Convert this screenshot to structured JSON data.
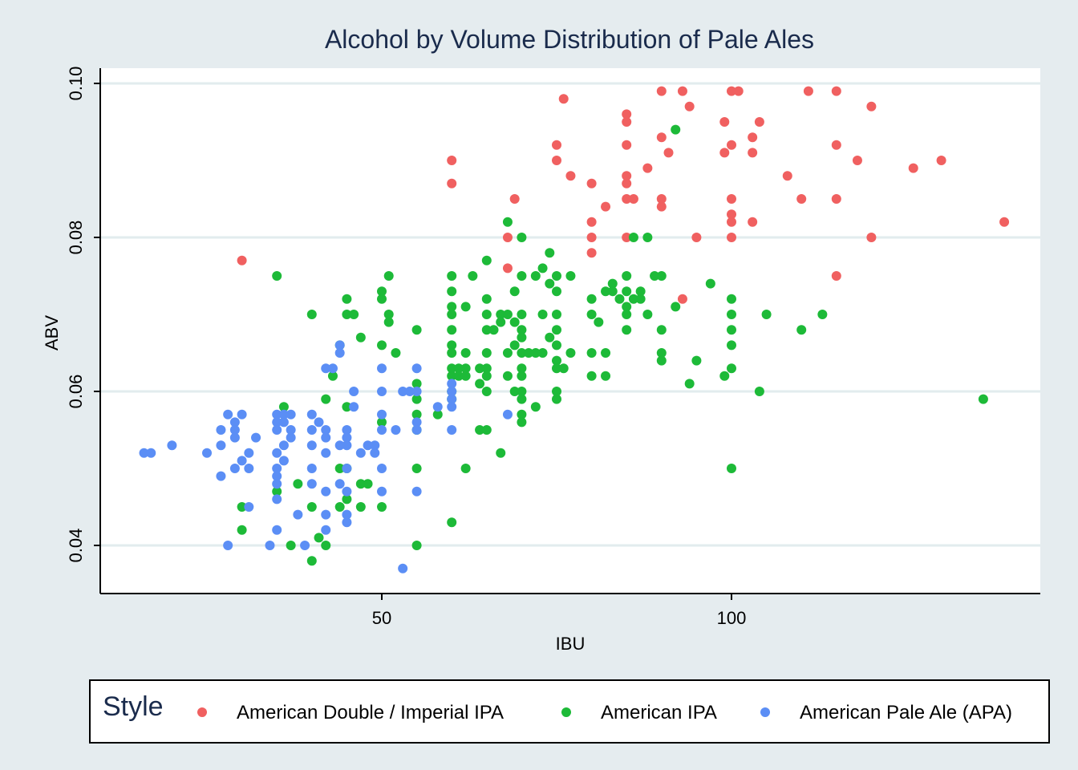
{
  "chart_data": {
    "type": "scatter",
    "title": "Alcohol by Volume Distribution of Pale Ales",
    "xlabel": "IBU",
    "ylabel": "ABV",
    "xlim": [
      10,
      145
    ],
    "ylim": [
      0.035,
      0.1005
    ],
    "xticks": [
      50,
      100
    ],
    "xtick_labels": [
      "50",
      "100"
    ],
    "yticks": [
      0.04,
      0.06,
      0.08,
      0.1
    ],
    "ytick_labels": [
      "0.04",
      "0.06",
      "0.08",
      "0.10"
    ],
    "grid": true,
    "legend": {
      "title": "Style",
      "position": "bottom"
    },
    "series": [
      {
        "name": "American Double / Imperial IPA",
        "color": "#f06060",
        "points": [
          [
            30,
            0.077
          ],
          [
            60,
            0.09
          ],
          [
            60,
            0.087
          ],
          [
            68,
            0.08
          ],
          [
            68,
            0.076
          ],
          [
            69,
            0.085
          ],
          [
            75,
            0.092
          ],
          [
            75,
            0.09
          ],
          [
            76,
            0.098
          ],
          [
            77,
            0.088
          ],
          [
            80,
            0.087
          ],
          [
            80,
            0.082
          ],
          [
            80,
            0.08
          ],
          [
            80,
            0.078
          ],
          [
            82,
            0.084
          ],
          [
            85,
            0.096
          ],
          [
            85,
            0.095
          ],
          [
            85,
            0.092
          ],
          [
            85,
            0.088
          ],
          [
            85,
            0.087
          ],
          [
            85,
            0.085
          ],
          [
            85,
            0.08
          ],
          [
            86,
            0.085
          ],
          [
            88,
            0.089
          ],
          [
            90,
            0.099
          ],
          [
            90,
            0.093
          ],
          [
            90,
            0.085
          ],
          [
            90,
            0.084
          ],
          [
            91,
            0.091
          ],
          [
            93,
            0.099
          ],
          [
            93,
            0.072
          ],
          [
            94,
            0.097
          ],
          [
            95,
            0.08
          ],
          [
            99,
            0.095
          ],
          [
            99,
            0.091
          ],
          [
            100,
            0.099
          ],
          [
            100,
            0.092
          ],
          [
            100,
            0.085
          ],
          [
            100,
            0.083
          ],
          [
            100,
            0.082
          ],
          [
            100,
            0.08
          ],
          [
            101,
            0.099
          ],
          [
            103,
            0.093
          ],
          [
            103,
            0.091
          ],
          [
            103,
            0.082
          ],
          [
            104,
            0.095
          ],
          [
            108,
            0.088
          ],
          [
            110,
            0.085
          ],
          [
            111,
            0.099
          ],
          [
            115,
            0.099
          ],
          [
            115,
            0.092
          ],
          [
            115,
            0.085
          ],
          [
            115,
            0.075
          ],
          [
            118,
            0.09
          ],
          [
            120,
            0.097
          ],
          [
            120,
            0.08
          ],
          [
            126,
            0.089
          ],
          [
            130,
            0.09
          ],
          [
            139,
            0.082
          ]
        ]
      },
      {
        "name": "American IPA",
        "color": "#1dba38",
        "points": [
          [
            30,
            0.045
          ],
          [
            30,
            0.042
          ],
          [
            35,
            0.075
          ],
          [
            35,
            0.047
          ],
          [
            36,
            0.058
          ],
          [
            37,
            0.04
          ],
          [
            38,
            0.048
          ],
          [
            40,
            0.07
          ],
          [
            40,
            0.045
          ],
          [
            40,
            0.038
          ],
          [
            41,
            0.041
          ],
          [
            42,
            0.059
          ],
          [
            42,
            0.04
          ],
          [
            43,
            0.062
          ],
          [
            44,
            0.066
          ],
          [
            44,
            0.05
          ],
          [
            44,
            0.045
          ],
          [
            45,
            0.072
          ],
          [
            45,
            0.07
          ],
          [
            45,
            0.058
          ],
          [
            45,
            0.05
          ],
          [
            45,
            0.046
          ],
          [
            46,
            0.07
          ],
          [
            47,
            0.067
          ],
          [
            47,
            0.048
          ],
          [
            47,
            0.045
          ],
          [
            48,
            0.048
          ],
          [
            50,
            0.073
          ],
          [
            50,
            0.072
          ],
          [
            50,
            0.066
          ],
          [
            50,
            0.056
          ],
          [
            50,
            0.045
          ],
          [
            51,
            0.075
          ],
          [
            51,
            0.07
          ],
          [
            51,
            0.069
          ],
          [
            52,
            0.065
          ],
          [
            55,
            0.068
          ],
          [
            55,
            0.061
          ],
          [
            55,
            0.059
          ],
          [
            55,
            0.057
          ],
          [
            55,
            0.055
          ],
          [
            55,
            0.05
          ],
          [
            55,
            0.04
          ],
          [
            58,
            0.057
          ],
          [
            60,
            0.075
          ],
          [
            60,
            0.073
          ],
          [
            60,
            0.071
          ],
          [
            60,
            0.07
          ],
          [
            60,
            0.068
          ],
          [
            60,
            0.066
          ],
          [
            60,
            0.065
          ],
          [
            60,
            0.063
          ],
          [
            60,
            0.062
          ],
          [
            60,
            0.06
          ],
          [
            60,
            0.059
          ],
          [
            60,
            0.043
          ],
          [
            61,
            0.063
          ],
          [
            61,
            0.062
          ],
          [
            62,
            0.071
          ],
          [
            62,
            0.065
          ],
          [
            62,
            0.063
          ],
          [
            62,
            0.062
          ],
          [
            62,
            0.05
          ],
          [
            63,
            0.075
          ],
          [
            64,
            0.063
          ],
          [
            64,
            0.061
          ],
          [
            64,
            0.055
          ],
          [
            65,
            0.077
          ],
          [
            65,
            0.072
          ],
          [
            65,
            0.07
          ],
          [
            65,
            0.068
          ],
          [
            65,
            0.065
          ],
          [
            65,
            0.063
          ],
          [
            65,
            0.062
          ],
          [
            65,
            0.06
          ],
          [
            65,
            0.055
          ],
          [
            66,
            0.068
          ],
          [
            67,
            0.07
          ],
          [
            67,
            0.069
          ],
          [
            67,
            0.052
          ],
          [
            68,
            0.082
          ],
          [
            68,
            0.07
          ],
          [
            68,
            0.065
          ],
          [
            68,
            0.062
          ],
          [
            69,
            0.073
          ],
          [
            69,
            0.069
          ],
          [
            69,
            0.066
          ],
          [
            69,
            0.06
          ],
          [
            70,
            0.08
          ],
          [
            70,
            0.075
          ],
          [
            70,
            0.07
          ],
          [
            70,
            0.068
          ],
          [
            70,
            0.067
          ],
          [
            70,
            0.065
          ],
          [
            70,
            0.063
          ],
          [
            70,
            0.062
          ],
          [
            70,
            0.06
          ],
          [
            70,
            0.059
          ],
          [
            70,
            0.057
          ],
          [
            70,
            0.056
          ],
          [
            71,
            0.065
          ],
          [
            72,
            0.075
          ],
          [
            72,
            0.065
          ],
          [
            72,
            0.058
          ],
          [
            73,
            0.076
          ],
          [
            73,
            0.07
          ],
          [
            73,
            0.065
          ],
          [
            74,
            0.078
          ],
          [
            74,
            0.074
          ],
          [
            74,
            0.067
          ],
          [
            75,
            0.075
          ],
          [
            75,
            0.073
          ],
          [
            75,
            0.07
          ],
          [
            75,
            0.068
          ],
          [
            75,
            0.066
          ],
          [
            75,
            0.064
          ],
          [
            75,
            0.063
          ],
          [
            75,
            0.06
          ],
          [
            75,
            0.059
          ],
          [
            76,
            0.063
          ],
          [
            77,
            0.075
          ],
          [
            77,
            0.065
          ],
          [
            80,
            0.072
          ],
          [
            80,
            0.07
          ],
          [
            80,
            0.065
          ],
          [
            80,
            0.062
          ],
          [
            81,
            0.069
          ],
          [
            82,
            0.073
          ],
          [
            82,
            0.065
          ],
          [
            82,
            0.062
          ],
          [
            83,
            0.074
          ],
          [
            83,
            0.073
          ],
          [
            84,
            0.072
          ],
          [
            85,
            0.075
          ],
          [
            85,
            0.073
          ],
          [
            85,
            0.071
          ],
          [
            85,
            0.07
          ],
          [
            85,
            0.068
          ],
          [
            86,
            0.08
          ],
          [
            86,
            0.072
          ],
          [
            87,
            0.073
          ],
          [
            87,
            0.072
          ],
          [
            88,
            0.08
          ],
          [
            88,
            0.07
          ],
          [
            89,
            0.075
          ],
          [
            90,
            0.075
          ],
          [
            90,
            0.068
          ],
          [
            90,
            0.065
          ],
          [
            90,
            0.064
          ],
          [
            92,
            0.094
          ],
          [
            92,
            0.071
          ],
          [
            94,
            0.061
          ],
          [
            95,
            0.064
          ],
          [
            97,
            0.074
          ],
          [
            99,
            0.062
          ],
          [
            100,
            0.072
          ],
          [
            100,
            0.07
          ],
          [
            100,
            0.068
          ],
          [
            100,
            0.066
          ],
          [
            100,
            0.063
          ],
          [
            100,
            0.05
          ],
          [
            104,
            0.06
          ],
          [
            105,
            0.07
          ],
          [
            110,
            0.068
          ],
          [
            113,
            0.07
          ],
          [
            136,
            0.059
          ]
        ]
      },
      {
        "name": "American Pale Ale (APA)",
        "color": "#5b8ef5",
        "points": [
          [
            16,
            0.052
          ],
          [
            17,
            0.052
          ],
          [
            20,
            0.053
          ],
          [
            25,
            0.052
          ],
          [
            27,
            0.055
          ],
          [
            27,
            0.053
          ],
          [
            27,
            0.049
          ],
          [
            28,
            0.057
          ],
          [
            28,
            0.04
          ],
          [
            29,
            0.056
          ],
          [
            29,
            0.055
          ],
          [
            29,
            0.054
          ],
          [
            29,
            0.05
          ],
          [
            30,
            0.057
          ],
          [
            30,
            0.051
          ],
          [
            31,
            0.052
          ],
          [
            31,
            0.05
          ],
          [
            31,
            0.045
          ],
          [
            32,
            0.054
          ],
          [
            34,
            0.04
          ],
          [
            35,
            0.057
          ],
          [
            35,
            0.056
          ],
          [
            35,
            0.055
          ],
          [
            35,
            0.052
          ],
          [
            35,
            0.05
          ],
          [
            35,
            0.049
          ],
          [
            35,
            0.048
          ],
          [
            35,
            0.046
          ],
          [
            35,
            0.042
          ],
          [
            36,
            0.057
          ],
          [
            36,
            0.056
          ],
          [
            36,
            0.053
          ],
          [
            36,
            0.051
          ],
          [
            37,
            0.057
          ],
          [
            37,
            0.055
          ],
          [
            37,
            0.054
          ],
          [
            38,
            0.044
          ],
          [
            39,
            0.04
          ],
          [
            40,
            0.057
          ],
          [
            40,
            0.055
          ],
          [
            40,
            0.053
          ],
          [
            40,
            0.05
          ],
          [
            40,
            0.048
          ],
          [
            41,
            0.056
          ],
          [
            42,
            0.063
          ],
          [
            42,
            0.055
          ],
          [
            42,
            0.054
          ],
          [
            42,
            0.052
          ],
          [
            42,
            0.047
          ],
          [
            42,
            0.044
          ],
          [
            42,
            0.042
          ],
          [
            43,
            0.063
          ],
          [
            44,
            0.066
          ],
          [
            44,
            0.065
          ],
          [
            44,
            0.053
          ],
          [
            44,
            0.048
          ],
          [
            45,
            0.055
          ],
          [
            45,
            0.054
          ],
          [
            45,
            0.053
          ],
          [
            45,
            0.05
          ],
          [
            45,
            0.047
          ],
          [
            45,
            0.044
          ],
          [
            45,
            0.043
          ],
          [
            46,
            0.06
          ],
          [
            46,
            0.058
          ],
          [
            47,
            0.052
          ],
          [
            48,
            0.053
          ],
          [
            49,
            0.053
          ],
          [
            49,
            0.052
          ],
          [
            50,
            0.063
          ],
          [
            50,
            0.06
          ],
          [
            50,
            0.057
          ],
          [
            50,
            0.055
          ],
          [
            50,
            0.05
          ],
          [
            50,
            0.047
          ],
          [
            52,
            0.055
          ],
          [
            53,
            0.06
          ],
          [
            53,
            0.037
          ],
          [
            54,
            0.06
          ],
          [
            55,
            0.063
          ],
          [
            55,
            0.06
          ],
          [
            55,
            0.056
          ],
          [
            55,
            0.055
          ],
          [
            55,
            0.047
          ],
          [
            58,
            0.058
          ],
          [
            60,
            0.061
          ],
          [
            60,
            0.059
          ],
          [
            60,
            0.055
          ],
          [
            60,
            0.06
          ],
          [
            60,
            0.058
          ],
          [
            68,
            0.057
          ]
        ]
      }
    ]
  }
}
